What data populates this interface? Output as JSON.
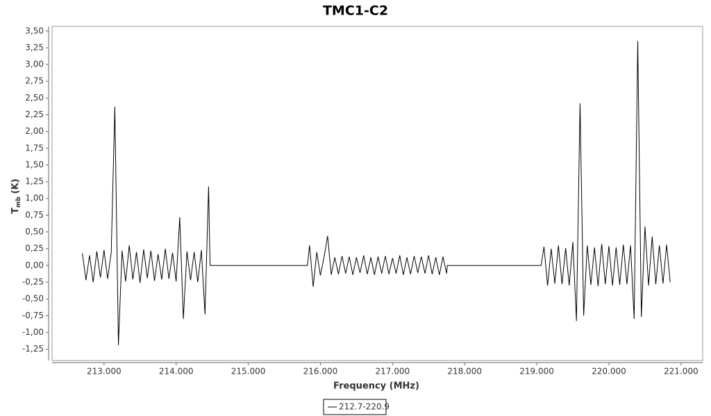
{
  "chart_data": {
    "type": "line",
    "title": "TMC1-C2",
    "x_label": "Frequency (MHz)",
    "y_label": "T",
    "y_label_sub": "mb",
    "y_label_unit": "(K)",
    "xlim": [
      212.28,
      221.3
    ],
    "ylim": [
      -1.42,
      3.57
    ],
    "xticks": [
      {
        "value": 213,
        "label": "213.000"
      },
      {
        "value": 214,
        "label": "214.000"
      },
      {
        "value": 215,
        "label": "215.000"
      },
      {
        "value": 216,
        "label": "216.000"
      },
      {
        "value": 217,
        "label": "217.000"
      },
      {
        "value": 218,
        "label": "218.000"
      },
      {
        "value": 219,
        "label": "219.000"
      },
      {
        "value": 220,
        "label": "220.000"
      },
      {
        "value": 221,
        "label": "221.000"
      }
    ],
    "yticks": [
      {
        "value": -1.25,
        "label": "-1,25"
      },
      {
        "value": -1,
        "label": "-1,00"
      },
      {
        "value": -0.75,
        "label": "-0,75"
      },
      {
        "value": -0.5,
        "label": "-0,50"
      },
      {
        "value": -0.25,
        "label": "-0,25"
      },
      {
        "value": 0,
        "label": "0,00"
      },
      {
        "value": 0.25,
        "label": "0,25"
      },
      {
        "value": 0.5,
        "label": "0,50"
      },
      {
        "value": 0.75,
        "label": "0,75"
      },
      {
        "value": 1,
        "label": "1,00"
      },
      {
        "value": 1.25,
        "label": "1,25"
      },
      {
        "value": 1.5,
        "label": "1,50"
      },
      {
        "value": 1.75,
        "label": "1,75"
      },
      {
        "value": 2,
        "label": "2,00"
      },
      {
        "value": 2.25,
        "label": "2,25"
      },
      {
        "value": 2.5,
        "label": "2,50"
      },
      {
        "value": 2.75,
        "label": "2,75"
      },
      {
        "value": 3,
        "label": "3,00"
      },
      {
        "value": 3.25,
        "label": "3,25"
      },
      {
        "value": 3.5,
        "label": "3,50"
      }
    ],
    "x": [
      212.7,
      212.75,
      212.8,
      212.85,
      212.9,
      212.95,
      213.0,
      213.05,
      213.1,
      213.15,
      213.2,
      213.25,
      213.3,
      213.35,
      213.4,
      213.45,
      213.5,
      213.55,
      213.6,
      213.65,
      213.7,
      213.75,
      213.8,
      213.85,
      213.9,
      213.95,
      214.0,
      214.05,
      214.1,
      214.15,
      214.2,
      214.25,
      214.3,
      214.35,
      214.4,
      214.45,
      214.47,
      215.82,
      215.85,
      215.9,
      215.95,
      216.0,
      216.05,
      216.1,
      216.15,
      216.2,
      216.25,
      216.3,
      216.35,
      216.4,
      216.45,
      216.5,
      216.55,
      216.6,
      216.65,
      216.7,
      216.75,
      216.8,
      216.85,
      216.9,
      216.95,
      217.0,
      217.05,
      217.1,
      217.15,
      217.2,
      217.25,
      217.3,
      217.35,
      217.4,
      217.45,
      217.5,
      217.55,
      217.6,
      217.65,
      217.7,
      217.75,
      217.76,
      219.06,
      219.1,
      219.15,
      219.2,
      219.25,
      219.3,
      219.35,
      219.4,
      219.45,
      219.5,
      219.55,
      219.6,
      219.65,
      219.7,
      219.75,
      219.8,
      219.85,
      219.9,
      219.95,
      220.0,
      220.05,
      220.1,
      220.15,
      220.2,
      220.25,
      220.3,
      220.35,
      220.4,
      220.45,
      220.5,
      220.55,
      220.6,
      220.65,
      220.7,
      220.75,
      220.8,
      220.85
    ],
    "series": [
      {
        "name": "212.7-220.9",
        "color": "#000000",
        "values": [
          0.18,
          -0.22,
          0.15,
          -0.25,
          0.21,
          -0.18,
          0.23,
          -0.2,
          0.19,
          2.37,
          -1.19,
          0.22,
          -0.24,
          0.3,
          -0.21,
          0.2,
          -0.26,
          0.24,
          -0.19,
          0.22,
          -0.23,
          0.17,
          -0.21,
          0.25,
          -0.2,
          0.19,
          -0.24,
          0.72,
          -0.8,
          0.21,
          -0.22,
          0.2,
          -0.25,
          0.23,
          -0.73,
          1.18,
          0,
          0,
          0.3,
          -0.32,
          0.2,
          -0.15,
          0.12,
          0.44,
          -0.14,
          0.12,
          -0.13,
          0.14,
          -0.12,
          0.13,
          -0.14,
          0.12,
          -0.11,
          0.15,
          -0.13,
          0.12,
          -0.14,
          0.13,
          -0.12,
          0.14,
          -0.13,
          0.11,
          -0.12,
          0.15,
          -0.14,
          0.12,
          -0.13,
          0.14,
          -0.11,
          0.13,
          -0.12,
          0.15,
          -0.13,
          0.12,
          -0.14,
          0.13,
          -0.12,
          0,
          0,
          0.28,
          -0.3,
          0.25,
          -0.27,
          0.3,
          -0.28,
          0.26,
          -0.3,
          0.35,
          -0.83,
          2.42,
          -0.75,
          0.3,
          -0.29,
          0.27,
          -0.31,
          0.32,
          -0.28,
          0.29,
          -0.3,
          0.27,
          -0.29,
          0.31,
          -0.28,
          0.3,
          -0.8,
          3.35,
          -0.77,
          0.58,
          -0.3,
          0.43,
          -0.28,
          0.3,
          -0.27,
          0.31,
          -0.25
        ]
      }
    ]
  }
}
